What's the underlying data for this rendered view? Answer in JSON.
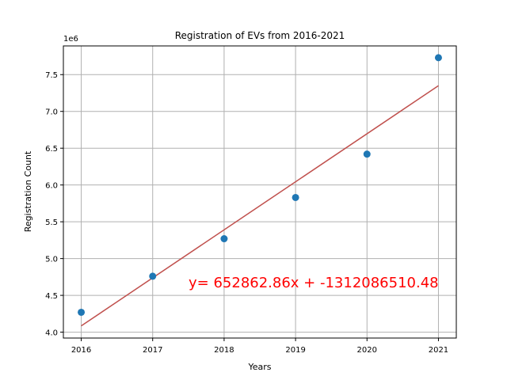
{
  "chart_data": {
    "type": "scatter",
    "title": "Registration of EVs from 2016-2021",
    "xlabel": "Years",
    "ylabel": "Registration Count",
    "y_scale_label": "1e6",
    "x": [
      2016,
      2017,
      2018,
      2019,
      2020,
      2021
    ],
    "series": [
      {
        "values": [
          4270000,
          4760000,
          5270000,
          5830000,
          6420000,
          7730000
        ],
        "color": "#1f77b4"
      }
    ],
    "trendline": {
      "slope": 652862.86,
      "intercept": -1312086510.48,
      "color": "#c0504d"
    },
    "annotation": {
      "text": "y= 652862.86x + -1312086510.48",
      "color": "#ff0000"
    },
    "x_ticks": [
      2016,
      2017,
      2018,
      2019,
      2020,
      2021
    ],
    "x_tick_labels": [
      "2016",
      "2017",
      "2018",
      "2019",
      "2020",
      "2021"
    ],
    "y_ticks": [
      4.0,
      4.5,
      5.0,
      5.5,
      6.0,
      6.5,
      7.0,
      7.5
    ],
    "y_tick_labels": [
      "4.0",
      "4.5",
      "5.0",
      "5.5",
      "6.0",
      "6.5",
      "7.0",
      "7.5"
    ],
    "xlim": [
      2015.75,
      2021.25
    ],
    "ylim": [
      3.92,
      7.89
    ],
    "grid": true
  }
}
